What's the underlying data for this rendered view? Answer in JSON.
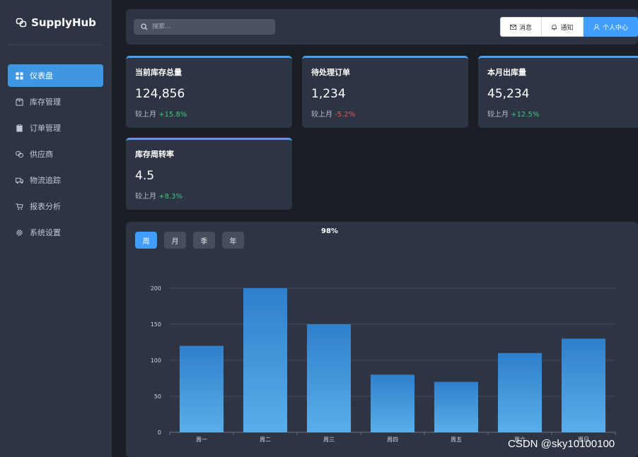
{
  "app": {
    "name": "SupplyHub"
  },
  "sidebar": {
    "items": [
      {
        "label": "仪表盘",
        "icon": "grid-icon",
        "active": true
      },
      {
        "label": "库存管理",
        "icon": "box-icon"
      },
      {
        "label": "订单管理",
        "icon": "clipboard-icon"
      },
      {
        "label": "供应商",
        "icon": "link-icon"
      },
      {
        "label": "物流追踪",
        "icon": "truck-icon"
      },
      {
        "label": "报表分析",
        "icon": "cart-icon"
      },
      {
        "label": "系统设置",
        "icon": "gear-icon"
      }
    ]
  },
  "header": {
    "search_placeholder": "搜索...",
    "buttons": [
      {
        "label": "消息",
        "icon": "mail-icon"
      },
      {
        "label": "通知",
        "icon": "bell-icon"
      },
      {
        "label": "个人中心",
        "icon": "user-icon"
      }
    ]
  },
  "stats": [
    {
      "title": "当前库存总量",
      "value": "124,856",
      "trend_prefix": "较上月",
      "trend": "+15.8%",
      "direction": "up"
    },
    {
      "title": "待处理订单",
      "value": "1,234",
      "trend_prefix": "较上月",
      "trend": "-5.2%",
      "direction": "down"
    },
    {
      "title": "本月出库量",
      "value": "45,234",
      "trend_prefix": "较上月",
      "trend": "+12.5%",
      "direction": "up"
    },
    {
      "title": "库存周转率",
      "value": "4.5",
      "trend_prefix": "较上月",
      "trend": "+8.3%",
      "direction": "up"
    }
  ],
  "chart_panel": {
    "periods": [
      "周",
      "月",
      "季",
      "年"
    ],
    "active_period": "周",
    "overlay_text": "98%"
  },
  "chart_data": {
    "type": "bar",
    "categories": [
      "周一",
      "周二",
      "周三",
      "周四",
      "周五",
      "周六",
      "周日"
    ],
    "values": [
      120,
      200,
      150,
      80,
      70,
      110,
      130
    ],
    "yticks": [
      0,
      50,
      100,
      150,
      200
    ],
    "ylim": [
      0,
      200
    ],
    "grid": true,
    "bar_color_top": "#2f7fcb",
    "bar_color_bottom": "#5aaee9"
  },
  "watermark": "CSDN @sky10100100"
}
